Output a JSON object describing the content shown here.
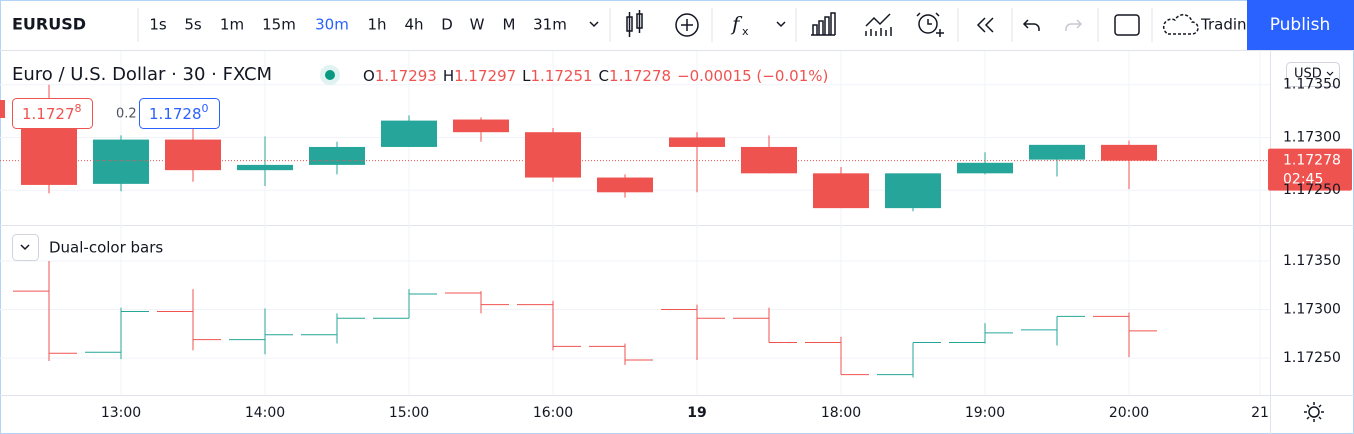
{
  "toolbar": {
    "symbol": "EURUSD",
    "intervals": [
      "1s",
      "5s",
      "1m",
      "15m",
      "30m",
      "1h",
      "4h",
      "D",
      "W",
      "M",
      "31m"
    ],
    "active_interval": 4,
    "trading": "Tradin",
    "publish": "Publish"
  },
  "legend": {
    "title": "Euro / U.S. Dollar · 30 · FXCM",
    "ohlc_letters": [
      "O",
      "H",
      "L",
      "C"
    ],
    "change": "−0.00015 (−0.01%)"
  },
  "sell": {
    "price": "1.1727",
    "pip": "8"
  },
  "spread": "0.2",
  "buy": {
    "price": "1.1728",
    "pip": "0"
  },
  "currency": "USD",
  "countdown": "02:45",
  "chart_data": {
    "type": "candlestick",
    "open": [
      1.17319,
      1.17256,
      1.17298,
      1.17269,
      1.17274,
      1.17291,
      1.17317,
      1.17305,
      1.17262,
      1.173,
      1.17291,
      1.17266,
      1.17233,
      1.17266,
      1.17279,
      1.17293
    ],
    "high": [
      1.1735,
      1.17302,
      1.17321,
      1.17301,
      1.17296,
      1.17321,
      1.17319,
      1.17309,
      1.17265,
      1.17305,
      1.17302,
      1.17272,
      1.17266,
      1.17286,
      1.17293,
      1.17297
    ],
    "low": [
      1.17247,
      1.17249,
      1.17258,
      1.17254,
      1.17265,
      1.17291,
      1.17296,
      1.17258,
      1.17243,
      1.17248,
      1.17266,
      1.17233,
      1.1723,
      1.17265,
      1.17263,
      1.17251
    ],
    "close": [
      1.17255,
      1.17298,
      1.17269,
      1.17274,
      1.17291,
      1.17316,
      1.17305,
      1.17262,
      1.17248,
      1.17291,
      1.17266,
      1.17233,
      1.17266,
      1.17276,
      1.17293,
      1.17278
    ],
    "up_color": "#26a69a",
    "down_color": "#ef5350",
    "ylim": [
      1.17217,
      1.17382
    ],
    "yticks": [
      {
        "value": 1.1725,
        "label": "1.17250"
      },
      {
        "value": 1.173,
        "label": "1.17300"
      },
      {
        "value": 1.1735,
        "label": "1.17350"
      }
    ],
    "time_labels": [
      "13:00",
      "14:00",
      "15:00",
      "16:00",
      "19",
      "18:00",
      "19:00",
      "20:00",
      "21"
    ],
    "grid": true,
    "indicator": {
      "type": "ohlc",
      "title": "Dual-color bars",
      "ylim": [
        1.17212,
        1.17386
      ],
      "yticks": [
        {
          "value": 1.1725,
          "label": "1.17250"
        },
        {
          "value": 1.173,
          "label": "1.17300"
        },
        {
          "value": 1.1735,
          "label": "1.17350"
        }
      ]
    }
  }
}
